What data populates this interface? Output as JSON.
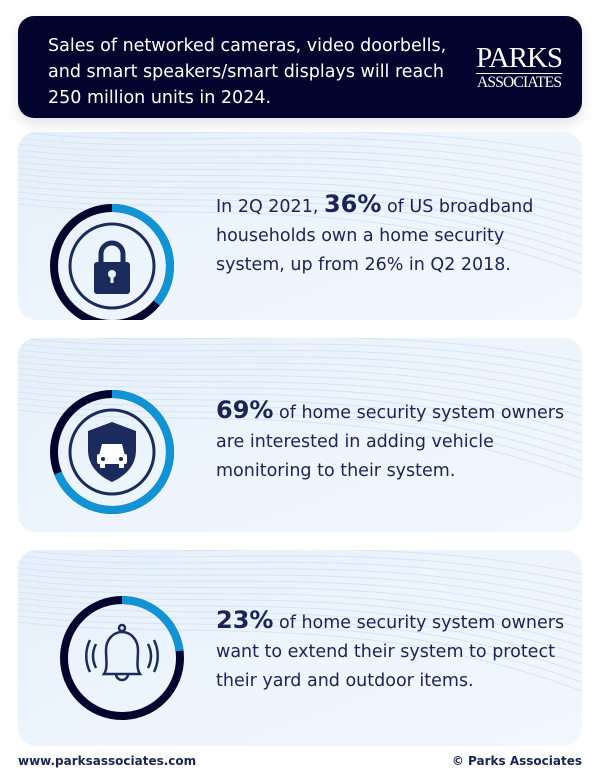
{
  "header": {
    "text": "Sales of networked cameras, video doorbells, and smart speakers/smart displays will reach 250 million units in 2024.",
    "logo_line1": "PARKS",
    "logo_line2": "ASSOCIATES"
  },
  "cards": [
    {
      "icon": "lock-icon",
      "percent_value": 36,
      "pre": "In 2Q 2021, ",
      "highlight": "36%",
      "post": " of US broadband households own a home security system, up from 26% in Q2 2018."
    },
    {
      "icon": "car-shield-icon",
      "percent_value": 69,
      "pre": "",
      "highlight": "69%",
      "post": " of home security system owners are interested in adding vehicle monitoring to their system."
    },
    {
      "icon": "bell-icon",
      "percent_value": 23,
      "pre": "",
      "highlight": "23%",
      "post": " of home security system owners want to extend their system to protect their yard and outdoor items."
    }
  ],
  "footer": {
    "website": "www.parksassociates.com",
    "copyright": "© Parks Associates"
  },
  "colors": {
    "navy": "#03042e",
    "accent": "#1094d6",
    "icon": "#1b2c5c",
    "card_bg": "#eaf3fc"
  }
}
